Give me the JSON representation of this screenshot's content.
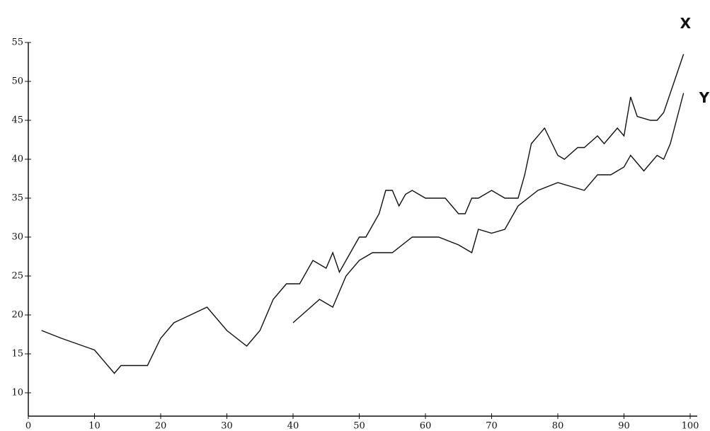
{
  "chart_data": {
    "type": "line",
    "xlim": [
      0,
      100
    ],
    "xticks": [
      0,
      10,
      20,
      30,
      40,
      50,
      60,
      70,
      80,
      90,
      100
    ],
    "ylim": [
      7,
      55
    ],
    "yticks": [
      10,
      15,
      20,
      25,
      30,
      35,
      40,
      45,
      50,
      55
    ],
    "series": [
      {
        "name": "X",
        "color": "#111111",
        "x": [
          2,
          5,
          10,
          13,
          14,
          18,
          20,
          22,
          27,
          30,
          33,
          35,
          37,
          39,
          41,
          43,
          45,
          46,
          47,
          48,
          50,
          51,
          53,
          54,
          55,
          56,
          57,
          58,
          60,
          63,
          65,
          66,
          67,
          68,
          70,
          72,
          74,
          75,
          76,
          78,
          80,
          81,
          83,
          84,
          86,
          87,
          89,
          90,
          91,
          92,
          94,
          95,
          96,
          98,
          99
        ],
        "values": [
          18,
          17,
          15.5,
          12.5,
          13.5,
          13.5,
          17,
          19,
          21,
          18,
          16,
          18,
          22,
          24,
          24,
          27,
          26,
          28,
          25.5,
          27,
          30,
          30,
          33,
          36,
          36,
          34,
          35.5,
          36,
          35,
          35,
          33,
          33,
          35,
          35,
          36,
          35,
          35,
          38,
          42,
          44,
          40.5,
          40,
          41.5,
          41.5,
          43,
          42,
          44,
          43,
          48,
          45.5,
          45,
          45,
          46,
          51,
          53.5
        ]
      },
      {
        "name": "Y",
        "color": "#111111",
        "x": [
          40,
          44,
          46,
          48,
          50,
          52,
          55,
          58,
          62,
          65,
          67,
          68,
          70,
          72,
          74,
          77,
          80,
          84,
          86,
          88,
          90,
          91,
          93,
          95,
          96,
          97,
          99
        ],
        "values": [
          19,
          22,
          21,
          25,
          27,
          28,
          28,
          30,
          30,
          29,
          28,
          31,
          30.5,
          31,
          34,
          36,
          37,
          36,
          38,
          38,
          39,
          40.5,
          38.5,
          40.5,
          40,
          42,
          48.5
        ]
      }
    ]
  }
}
